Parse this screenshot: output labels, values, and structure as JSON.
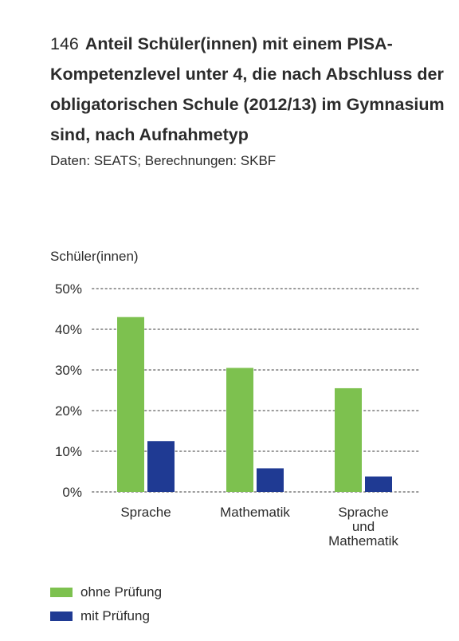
{
  "figure": {
    "number": "146",
    "title": "Anteil Schüler(innen) mit einem PISA-Kompetenzlevel unter 4, die nach Abschluss der obligatorischen Schule (2012/13) im Gymnasium sind, nach Aufnahmetyp",
    "source": "Daten: SEATS; Berechnungen: SKBF"
  },
  "chart_data": {
    "type": "bar",
    "ylabel": "Schüler(innen)",
    "ylim": [
      0,
      50
    ],
    "yticks": [
      "0%",
      "10%",
      "20%",
      "30%",
      "40%",
      "50%"
    ],
    "grid": "dotted horizontal",
    "categories": [
      [
        "Sprache"
      ],
      [
        "Mathematik"
      ],
      [
        "Sprache",
        "und",
        "Mathematik"
      ]
    ],
    "series": [
      {
        "name": "ohne Prüfung",
        "color": "#7dc14f",
        "values": [
          43,
          30.5,
          25.5
        ]
      },
      {
        "name": "mit Prüfung",
        "color": "#1f3a93",
        "values": [
          12.5,
          5.8,
          3.8
        ]
      }
    ],
    "legend_position": "bottom-left"
  }
}
